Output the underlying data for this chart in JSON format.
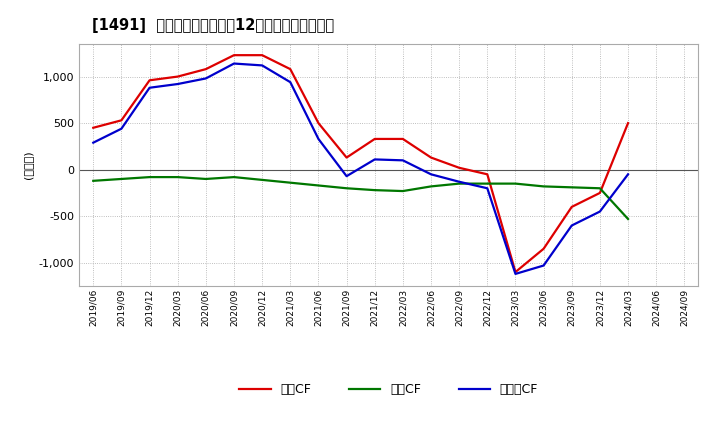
{
  "title": "[1491]  キャッシュフローの12か月移動合計の推移",
  "ylabel": "(百万円)",
  "ylim": [
    -1250,
    1350
  ],
  "yticks": [
    -1000,
    -500,
    0,
    500,
    1000
  ],
  "background_color": "#ffffff",
  "plot_bg_color": "#ffffff",
  "grid_color": "#aaaaaa",
  "legend_labels": [
    "営業CF",
    "投資CF",
    "フリーCF"
  ],
  "line_colors": [
    "#dd0000",
    "#007700",
    "#0000cc"
  ],
  "dates": [
    "2019/06",
    "2019/09",
    "2019/12",
    "2020/03",
    "2020/06",
    "2020/09",
    "2020/12",
    "2021/03",
    "2021/06",
    "2021/09",
    "2021/12",
    "2022/03",
    "2022/06",
    "2022/09",
    "2022/12",
    "2023/03",
    "2023/06",
    "2023/09",
    "2023/12",
    "2024/03",
    "2024/06",
    "2024/09"
  ],
  "eigyo_cf": [
    450,
    530,
    960,
    1000,
    1080,
    1230,
    1230,
    1080,
    500,
    130,
    330,
    330,
    130,
    20,
    -50,
    -1100,
    -850,
    -400,
    -250,
    500,
    null,
    null
  ],
  "toshi_cf": [
    -120,
    -100,
    -80,
    -80,
    -100,
    -80,
    -110,
    -140,
    -170,
    -200,
    -220,
    -230,
    -180,
    -150,
    -150,
    -150,
    -180,
    -190,
    -200,
    -530,
    null,
    null
  ],
  "free_cf": [
    290,
    440,
    880,
    920,
    980,
    1140,
    1120,
    940,
    330,
    -70,
    110,
    100,
    -50,
    -130,
    -200,
    -1120,
    -1030,
    -600,
    -450,
    -50,
    null,
    null
  ]
}
